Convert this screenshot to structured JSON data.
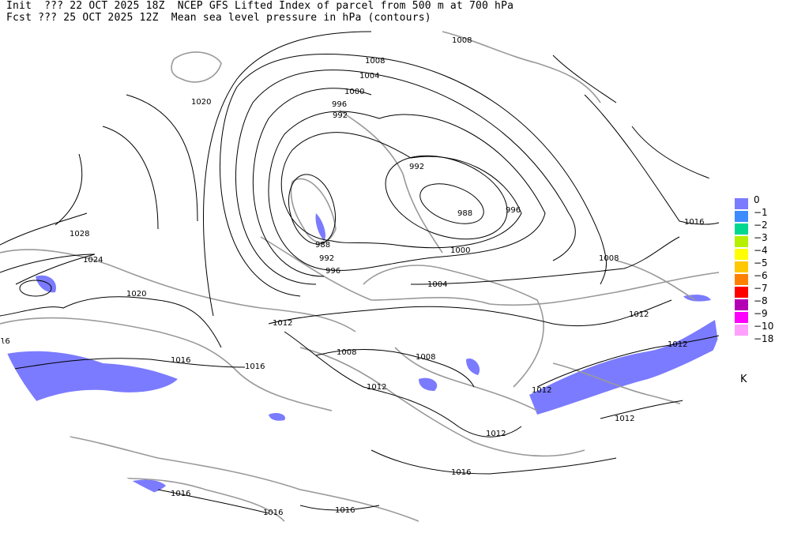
{
  "header": {
    "line1": "Init  ??? 22 OCT 2025 18Z  NCEP GFS Lifted Index of parcel from 500 m at 700 hPa",
    "line2": "Fcst ??? 25 OCT 2025 12Z  Mean sea level pressure in hPa (contours)"
  },
  "legend": {
    "unit": "K",
    "items": [
      {
        "label": "0",
        "color": "#7b7bff"
      },
      {
        "label": "−1",
        "color": "#3c8cff"
      },
      {
        "label": "−2",
        "color": "#00d890"
      },
      {
        "label": "−3",
        "color": "#b4f000"
      },
      {
        "label": "−4",
        "color": "#ffff00"
      },
      {
        "label": "−5",
        "color": "#ffc800"
      },
      {
        "label": "−6",
        "color": "#ff8000"
      },
      {
        "label": "−7",
        "color": "#ff0000"
      },
      {
        "label": "−8",
        "color": "#b400b4"
      },
      {
        "label": "−9",
        "color": "#ff00ff"
      },
      {
        "label": "−10",
        "color": "#ffa0ff"
      },
      {
        "label": "−18",
        "color": ""
      }
    ]
  },
  "contour_labels": [
    "1008",
    "1008",
    "1004",
    "1000",
    "996",
    "992",
    "1020",
    "992",
    "988",
    "996",
    "1016",
    "1028",
    "1024",
    "1020",
    "988",
    "992",
    "996",
    "1000",
    "1008",
    "1004",
    "1012",
    "1012",
    "1012",
    "1008",
    "1008",
    "1016",
    "1016",
    "1012",
    "1012",
    "1012",
    "1012",
    "1016",
    "1016",
    "1016",
    "1016",
    "1016",
    "16",
    "1012"
  ]
}
